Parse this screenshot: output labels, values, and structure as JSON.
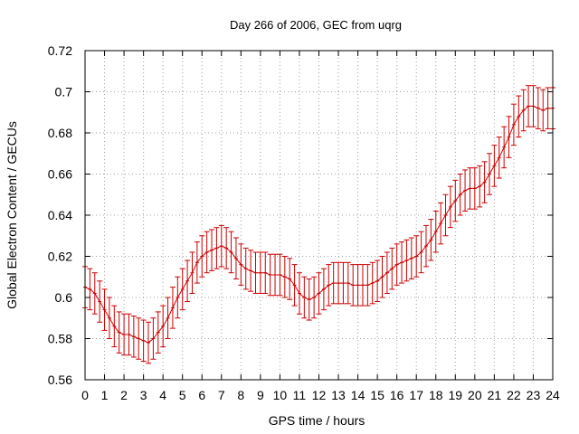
{
  "chart_data": {
    "type": "line",
    "title": "Day 266 of 2006, GEC from uqrg",
    "xlabel": "GPS time / hours",
    "ylabel": "Global Electron Content / GECUs",
    "xlim": [
      0,
      24
    ],
    "ylim": [
      0.56,
      0.72
    ],
    "grid": true,
    "x_ticks": [
      "0",
      "1",
      "2",
      "3",
      "4",
      "5",
      "6",
      "7",
      "8",
      "9",
      "10",
      "11",
      "12",
      "13",
      "14",
      "15",
      "16",
      "17",
      "18",
      "19",
      "20",
      "21",
      "22",
      "23",
      "24"
    ],
    "y_ticks": [
      "0.56",
      "0.58",
      "0.6",
      "0.62",
      "0.64",
      "0.66",
      "0.68",
      "0.7",
      "0.72"
    ],
    "series": [
      {
        "name": "GEC",
        "color": "#cc0000",
        "x": [
          0.0,
          0.25,
          0.5,
          0.75,
          1.0,
          1.25,
          1.5,
          1.75,
          2.0,
          2.25,
          2.5,
          2.75,
          3.0,
          3.25,
          3.5,
          3.75,
          4.0,
          4.25,
          4.5,
          4.75,
          5.0,
          5.25,
          5.5,
          5.75,
          6.0,
          6.25,
          6.5,
          6.75,
          7.0,
          7.25,
          7.5,
          7.75,
          8.0,
          8.25,
          8.5,
          8.75,
          9.0,
          9.25,
          9.5,
          9.75,
          10.0,
          10.25,
          10.5,
          10.75,
          11.0,
          11.25,
          11.5,
          11.75,
          12.0,
          12.25,
          12.5,
          12.75,
          13.0,
          13.25,
          13.5,
          13.75,
          14.0,
          14.25,
          14.5,
          14.75,
          15.0,
          15.25,
          15.5,
          15.75,
          16.0,
          16.25,
          16.5,
          16.75,
          17.0,
          17.25,
          17.5,
          17.75,
          18.0,
          18.25,
          18.5,
          18.75,
          19.0,
          19.25,
          19.5,
          19.75,
          20.0,
          20.25,
          20.5,
          20.75,
          21.0,
          21.25,
          21.5,
          21.75,
          22.0,
          22.25,
          22.5,
          22.75,
          23.0,
          23.25,
          23.5,
          23.75,
          24.0
        ],
        "y": [
          0.605,
          0.604,
          0.602,
          0.598,
          0.594,
          0.59,
          0.586,
          0.583,
          0.582,
          0.582,
          0.581,
          0.58,
          0.579,
          0.578,
          0.58,
          0.583,
          0.586,
          0.59,
          0.595,
          0.6,
          0.604,
          0.608,
          0.612,
          0.617,
          0.62,
          0.622,
          0.623,
          0.624,
          0.625,
          0.624,
          0.622,
          0.619,
          0.616,
          0.614,
          0.613,
          0.612,
          0.612,
          0.612,
          0.611,
          0.611,
          0.611,
          0.61,
          0.609,
          0.606,
          0.602,
          0.6,
          0.599,
          0.6,
          0.602,
          0.604,
          0.606,
          0.607,
          0.607,
          0.607,
          0.607,
          0.606,
          0.606,
          0.606,
          0.606,
          0.607,
          0.608,
          0.61,
          0.612,
          0.614,
          0.616,
          0.617,
          0.618,
          0.619,
          0.62,
          0.622,
          0.625,
          0.628,
          0.632,
          0.636,
          0.64,
          0.644,
          0.647,
          0.65,
          0.652,
          0.653,
          0.653,
          0.654,
          0.656,
          0.66,
          0.664,
          0.668,
          0.673,
          0.678,
          0.684,
          0.688,
          0.691,
          0.693,
          0.693,
          0.692,
          0.691,
          0.692,
          0.692
        ],
        "error": 0.01
      }
    ]
  }
}
